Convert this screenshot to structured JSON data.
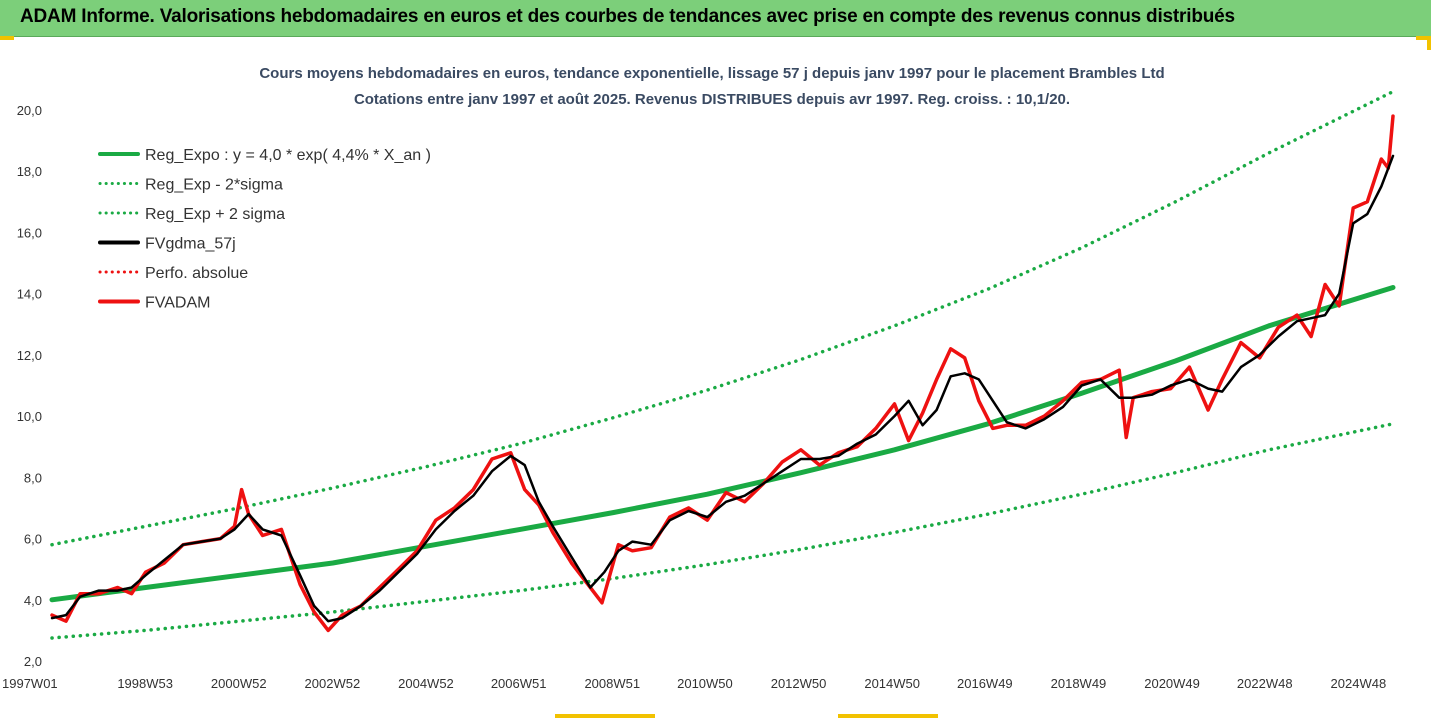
{
  "banner": {
    "title": "ADAM Informe. Valorisations hebdomadaires en euros et des courbes de tendances avec prise en compte des revenus connus distribués"
  },
  "colors": {
    "banner_bg": "#7ccf7a",
    "trend": "#1aaa44",
    "price": "#ee1111",
    "smooth": "#000000",
    "corner": "#f2c200"
  },
  "chart_data": {
    "type": "line",
    "title": "Cours moyens hebdomadaires en euros, tendance exponentielle, lissage 57 j depuis janv 1997 pour le placement Brambles Ltd",
    "subtitle": "Cotations entre janv 1997 et août 2025. Revenus DISTRIBUES depuis avr 1997. Reg. croiss. : 10,1/20.",
    "xlabel": "",
    "ylabel": "",
    "ylim": [
      2,
      20
    ],
    "yticks": [
      "2,0",
      "4,0",
      "6,0",
      "8,0",
      "10,0",
      "12,0",
      "14,0",
      "16,0",
      "18,0",
      "20,0"
    ],
    "xrange": [
      1997.0,
      2025.65
    ],
    "xticks": [
      {
        "label": "1997W01",
        "x": 1997.0
      },
      {
        "label": "1998W53",
        "x": 1998.99
      },
      {
        "label": "2000W52",
        "x": 2000.99
      },
      {
        "label": "2002W52",
        "x": 2002.99
      },
      {
        "label": "2004W52",
        "x": 2004.99
      },
      {
        "label": "2006W51",
        "x": 2006.97
      },
      {
        "label": "2008W51",
        "x": 2008.97
      },
      {
        "label": "2010W50",
        "x": 2010.95
      },
      {
        "label": "2012W50",
        "x": 2012.95
      },
      {
        "label": "2014W50",
        "x": 2014.95
      },
      {
        "label": "2016W49",
        "x": 2016.93
      },
      {
        "label": "2018W49",
        "x": 2018.93
      },
      {
        "label": "2020W49",
        "x": 2020.93
      },
      {
        "label": "2022W48",
        "x": 2022.91
      },
      {
        "label": "2024W48",
        "x": 2024.91
      }
    ],
    "grid": false,
    "legend_position": "top-left",
    "legend": [
      {
        "label": "Reg_Expo : y = 4,0 * exp( 4,4% *  X_an )",
        "style": "solid",
        "color": "#1aaa44"
      },
      {
        "label": "Reg_Exp - 2*sigma",
        "style": "dotted",
        "color": "#1aaa44"
      },
      {
        "label": "Reg_Exp + 2 sigma",
        "style": "dotted",
        "color": "#1aaa44"
      },
      {
        "label": "FVgdma_57j",
        "style": "solid",
        "color": "#000000"
      },
      {
        "label": "Perfo. absolue",
        "style": "dotted",
        "color": "#ee1111"
      },
      {
        "label": "FVADAM",
        "style": "solid",
        "color": "#ee1111"
      }
    ],
    "series": [
      {
        "name": "Reg_Expo : y = 4,0 * exp( 4,4% *  X_an )",
        "x": [
          1997,
          1999,
          2001,
          2003,
          2005,
          2007,
          2009,
          2011,
          2013,
          2015,
          2017,
          2019,
          2021,
          2023,
          2025.65
        ],
        "y": [
          4.0,
          4.4,
          4.8,
          5.2,
          5.75,
          6.3,
          6.85,
          7.45,
          8.15,
          8.9,
          9.75,
          10.75,
          11.8,
          12.95,
          14.2
        ]
      },
      {
        "name": "Reg_Exp - 2*sigma",
        "x": [
          1997,
          1999,
          2001,
          2003,
          2005,
          2007,
          2009,
          2011,
          2013,
          2015,
          2017,
          2019,
          2021,
          2023,
          2025.65
        ],
        "y": [
          2.75,
          3.0,
          3.3,
          3.6,
          3.95,
          4.3,
          4.7,
          5.15,
          5.65,
          6.2,
          6.8,
          7.45,
          8.15,
          8.9,
          9.75
        ]
      },
      {
        "name": "Reg_Exp + 2 sigma",
        "x": [
          1997,
          1999,
          2001,
          2003,
          2005,
          2007,
          2009,
          2011,
          2013,
          2015,
          2017,
          2019,
          2021,
          2023,
          2025.65
        ],
        "y": [
          5.8,
          6.4,
          7.0,
          7.65,
          8.35,
          9.1,
          9.95,
          10.85,
          11.85,
          12.95,
          14.15,
          15.5,
          17.0,
          18.6,
          20.6
        ]
      },
      {
        "name": "FVgdma_57j",
        "x": [
          1997.0,
          1997.3,
          1997.6,
          1998.0,
          1998.4,
          1998.7,
          1999.0,
          1999.4,
          1999.8,
          2000.2,
          2000.6,
          2000.9,
          2001.2,
          2001.5,
          2001.9,
          2002.3,
          2002.6,
          2002.9,
          2003.2,
          2003.6,
          2004.0,
          2004.4,
          2004.8,
          2005.2,
          2005.6,
          2006.0,
          2006.4,
          2006.8,
          2007.1,
          2007.4,
          2007.7,
          2008.1,
          2008.5,
          2008.8,
          2009.1,
          2009.4,
          2009.8,
          2010.2,
          2010.6,
          2011.0,
          2011.4,
          2011.8,
          2012.2,
          2012.6,
          2013.0,
          2013.4,
          2013.8,
          2014.2,
          2014.6,
          2015.0,
          2015.3,
          2015.6,
          2015.9,
          2016.2,
          2016.5,
          2016.8,
          2017.1,
          2017.4,
          2017.8,
          2018.2,
          2018.6,
          2019.0,
          2019.4,
          2019.8,
          2020.1,
          2020.5,
          2020.9,
          2021.3,
          2021.7,
          2022.0,
          2022.4,
          2022.8,
          2023.2,
          2023.6,
          2023.9,
          2024.2,
          2024.5,
          2024.8,
          2025.1,
          2025.4,
          2025.65
        ],
        "y": [
          3.4,
          3.5,
          4.1,
          4.3,
          4.3,
          4.4,
          4.8,
          5.3,
          5.8,
          5.9,
          6.0,
          6.3,
          6.8,
          6.3,
          6.1,
          4.8,
          3.8,
          3.3,
          3.4,
          3.8,
          4.3,
          4.9,
          5.5,
          6.3,
          6.9,
          7.4,
          8.2,
          8.7,
          8.4,
          7.2,
          6.4,
          5.4,
          4.4,
          4.9,
          5.6,
          5.9,
          5.8,
          6.6,
          6.9,
          6.7,
          7.2,
          7.4,
          7.8,
          8.2,
          8.6,
          8.6,
          8.7,
          9.1,
          9.4,
          10.0,
          10.5,
          9.7,
          10.2,
          11.3,
          11.4,
          11.2,
          10.5,
          9.8,
          9.6,
          9.9,
          10.3,
          11.0,
          11.2,
          10.6,
          10.6,
          10.7,
          11.0,
          11.2,
          10.9,
          10.8,
          11.6,
          12.0,
          12.6,
          13.1,
          13.2,
          13.3,
          14.0,
          16.3,
          16.6,
          17.5,
          18.5
        ]
      },
      {
        "name": "FVADAM",
        "x": [
          1997.0,
          1997.3,
          1997.6,
          1998.0,
          1998.4,
          1998.7,
          1999.0,
          1999.4,
          1999.8,
          2000.2,
          2000.6,
          2000.9,
          2001.05,
          2001.2,
          2001.5,
          2001.9,
          2002.3,
          2002.6,
          2002.9,
          2003.2,
          2003.6,
          2004.0,
          2004.4,
          2004.8,
          2005.2,
          2005.6,
          2006.0,
          2006.4,
          2006.8,
          2007.1,
          2007.4,
          2007.7,
          2008.1,
          2008.5,
          2008.75,
          2009.1,
          2009.4,
          2009.8,
          2010.2,
          2010.6,
          2011.0,
          2011.4,
          2011.8,
          2012.2,
          2012.6,
          2013.0,
          2013.4,
          2013.8,
          2014.2,
          2014.6,
          2015.0,
          2015.3,
          2015.6,
          2015.9,
          2016.2,
          2016.5,
          2016.8,
          2017.1,
          2017.4,
          2017.8,
          2018.2,
          2018.6,
          2019.0,
          2019.4,
          2019.8,
          2019.95,
          2020.1,
          2020.5,
          2020.9,
          2021.3,
          2021.7,
          2022.0,
          2022.4,
          2022.8,
          2023.2,
          2023.6,
          2023.9,
          2024.2,
          2024.5,
          2024.8,
          2025.1,
          2025.4,
          2025.55,
          2025.65
        ],
        "y": [
          3.5,
          3.3,
          4.2,
          4.2,
          4.4,
          4.2,
          4.9,
          5.2,
          5.8,
          5.9,
          6.0,
          6.4,
          7.6,
          6.8,
          6.1,
          6.3,
          4.5,
          3.6,
          3.0,
          3.5,
          3.8,
          4.4,
          5.0,
          5.6,
          6.6,
          7.0,
          7.6,
          8.6,
          8.8,
          7.6,
          7.1,
          6.2,
          5.2,
          4.4,
          3.9,
          5.8,
          5.6,
          5.7,
          6.7,
          7.0,
          6.6,
          7.5,
          7.2,
          7.8,
          8.5,
          8.9,
          8.4,
          8.8,
          9.0,
          9.6,
          10.4,
          9.2,
          10.1,
          11.2,
          12.2,
          11.9,
          10.5,
          9.6,
          9.7,
          9.7,
          10.0,
          10.5,
          11.1,
          11.2,
          11.5,
          9.3,
          10.6,
          10.8,
          10.9,
          11.6,
          10.2,
          11.2,
          12.4,
          11.9,
          12.9,
          13.3,
          12.6,
          14.3,
          13.6,
          16.8,
          17.0,
          18.4,
          18.1,
          19.8
        ]
      }
    ]
  }
}
